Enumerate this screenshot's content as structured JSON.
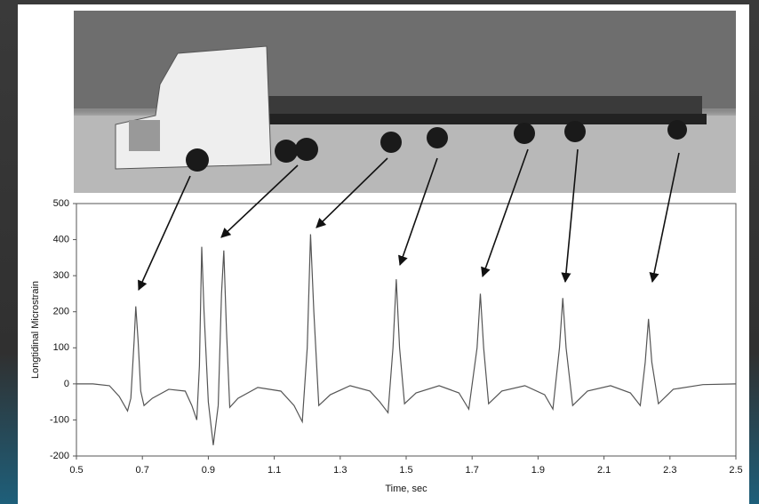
{
  "chart_data": {
    "type": "line",
    "x_label": "Time, sec",
    "y_label": "Longtidinal Microstrain",
    "xlim": [
      0.5,
      2.5
    ],
    "xticks": [
      0.5,
      0.7,
      0.9,
      1.1,
      1.3,
      1.5,
      1.7,
      1.9,
      2.1,
      2.3,
      2.5
    ],
    "ylim": [
      -200,
      500
    ],
    "yticks": [
      -200,
      -100,
      0,
      100,
      200,
      300,
      400,
      500
    ],
    "grid": false,
    "x": [
      0.5,
      0.55,
      0.6,
      0.63,
      0.655,
      0.665,
      0.675,
      0.68,
      0.687,
      0.695,
      0.705,
      0.73,
      0.78,
      0.83,
      0.85,
      0.865,
      0.873,
      0.88,
      0.887,
      0.9,
      0.915,
      0.93,
      0.94,
      0.947,
      0.955,
      0.965,
      0.99,
      1.05,
      1.12,
      1.16,
      1.185,
      1.2,
      1.21,
      1.22,
      1.235,
      1.27,
      1.33,
      1.39,
      1.42,
      1.445,
      1.46,
      1.47,
      1.48,
      1.495,
      1.53,
      1.6,
      1.66,
      1.69,
      1.715,
      1.725,
      1.735,
      1.75,
      1.79,
      1.86,
      1.92,
      1.945,
      1.965,
      1.975,
      1.985,
      2.005,
      2.05,
      2.12,
      2.18,
      2.21,
      2.225,
      2.235,
      2.245,
      2.265,
      2.31,
      2.4,
      2.5
    ],
    "series": [
      {
        "color": "#555555",
        "values": [
          0,
          0,
          -5,
          -35,
          -75,
          -40,
          120,
          215,
          120,
          -20,
          -60,
          -40,
          -15,
          -20,
          -60,
          -100,
          50,
          380,
          200,
          -50,
          -170,
          -60,
          250,
          370,
          150,
          -65,
          -40,
          -10,
          -20,
          -60,
          -105,
          100,
          415,
          200,
          -60,
          -30,
          -5,
          -20,
          -50,
          -80,
          100,
          290,
          100,
          -55,
          -25,
          -5,
          -25,
          -70,
          100,
          250,
          100,
          -55,
          -20,
          -5,
          -30,
          -70,
          100,
          238,
          100,
          -60,
          -20,
          -5,
          -25,
          -60,
          60,
          180,
          60,
          -55,
          -15,
          -2,
          0
        ]
      }
    ]
  }
}
